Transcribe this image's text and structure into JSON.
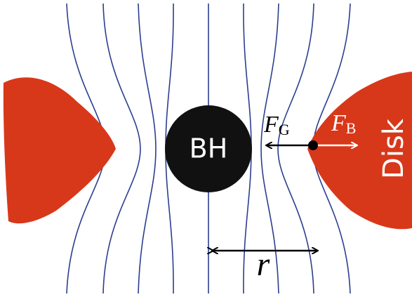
{
  "labels": {
    "black_hole": "BH",
    "disk": "Disk",
    "gravity_force": {
      "symbol": "F",
      "subscript": "G"
    },
    "magnetic_force": {
      "symbol": "F",
      "subscript": "B"
    },
    "radius": "r"
  }
}
